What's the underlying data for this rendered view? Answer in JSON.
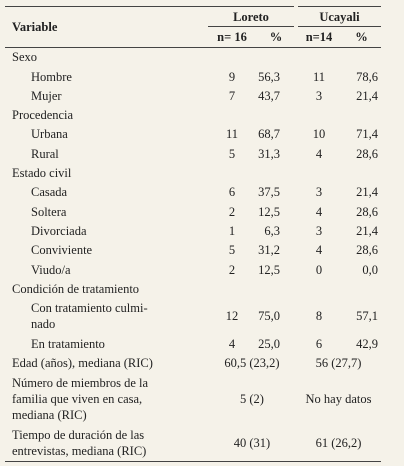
{
  "table": {
    "header": {
      "variable": "Variable",
      "loreto": "Loreto",
      "ucayali": "Ucayali",
      "loreto_n": "n= 16",
      "loreto_pct": "%",
      "ucayali_n": "n=14",
      "ucayali_pct": "%"
    },
    "groups": [
      {
        "title": "Sexo",
        "rows": [
          {
            "label": "Hombre",
            "values": [
              "9",
              "56,3",
              "11",
              "78,6"
            ]
          },
          {
            "label": "Mujer",
            "values": [
              "7",
              "43,7",
              "3",
              "21,4"
            ]
          }
        ]
      },
      {
        "title": "Procedencia",
        "rows": [
          {
            "label": "Urbana",
            "values": [
              "11",
              "68,7",
              "10",
              "71,4"
            ]
          },
          {
            "label": "Rural",
            "values": [
              "5",
              "31,3",
              "4",
              "28,6"
            ]
          }
        ]
      },
      {
        "title": "Estado civil",
        "rows": [
          {
            "label": "Casada",
            "values": [
              "6",
              "37,5",
              "3",
              "21,4"
            ]
          },
          {
            "label": "Soltera",
            "values": [
              "2",
              "12,5",
              "4",
              "28,6"
            ]
          },
          {
            "label": "Divorciada",
            "values": [
              "1",
              "6,3",
              "3",
              "21,4"
            ]
          },
          {
            "label": "Conviviente",
            "values": [
              "5",
              "31,2",
              "4",
              "28,6"
            ]
          },
          {
            "label": "Viudo/a",
            "values": [
              "2",
              "12,5",
              "0",
              "0,0"
            ]
          }
        ]
      },
      {
        "title": "Condición de tratamiento",
        "rows": [
          {
            "label": "Con tratamiento culmi-\nnado",
            "values": [
              "12",
              "75,0",
              "8",
              "57,1"
            ]
          },
          {
            "label": "En tratamiento",
            "values": [
              "4",
              "25,0",
              "6",
              "42,9"
            ]
          }
        ]
      }
    ],
    "summary": [
      {
        "label": "Edad (años), mediana (RIC)",
        "loreto": "60,5 (23,2)",
        "ucayali": "56 (27,7)"
      },
      {
        "label": "Número de miembros de la\nfamilia que viven en casa,\nmediana (RIC)",
        "loreto": "5 (2)",
        "ucayali": "No hay datos"
      },
      {
        "label": "Tiempo de duración de las\nentrevistas, mediana (RIC)",
        "loreto": "40 (31)",
        "ucayali": "61 (26,2)"
      }
    ]
  }
}
